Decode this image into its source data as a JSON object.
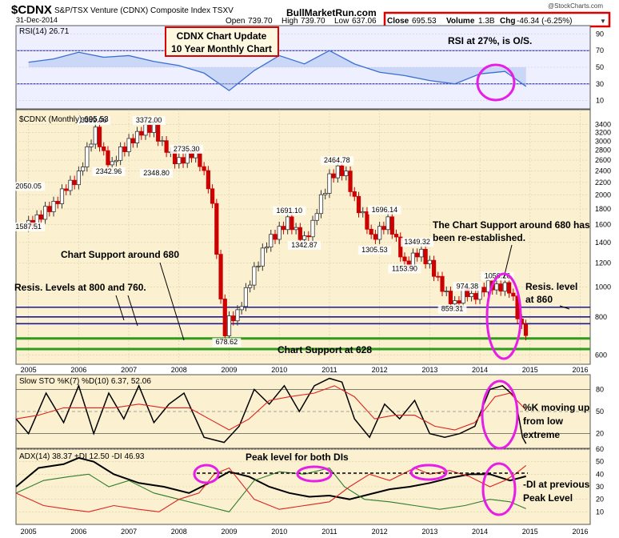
{
  "header": {
    "symbol": "$CDNX",
    "name": "S&P/TSX Venture (CDNX) Composite Index  TSXV",
    "date": "31-Dec-2014",
    "watermark": "@StockCharts.com",
    "site": "BullMarketRun.com",
    "open_label": "Open",
    "open": "739.70",
    "high_label": "High",
    "high": "739.70",
    "low_label": "Low",
    "low": "637.06",
    "close_label": "Close",
    "close": "695.53",
    "volume_label": "Volume",
    "volume": "1.3B",
    "chg_label": "Chg",
    "chg": "-46.34 (-6.25%)",
    "title_box_line1": "CDNX Chart Update",
    "title_box_line2": "10 Year Monthly Chart"
  },
  "colors": {
    "background": "#ffffff",
    "panel_bg": "#fbf0cf",
    "rsi_bg": "#eef0ff",
    "candle_up": "#333333",
    "candle_down": "#cc0000",
    "rsi_line": "#3a6fd0",
    "support_line": "#2e9a1e",
    "resistance_line": "#1a1a9a",
    "highlight_circle": "#e61ee6",
    "adx_line": "#000000",
    "plus_di_line": "#2e7d2e",
    "minus_di_line": "#dd2222",
    "annotation_box": "#dd0000"
  },
  "chart_data": [
    {
      "type": "line",
      "title": "RSI(14) 26.71",
      "value": 26.71,
      "ylim": [
        0,
        100
      ],
      "yticks": [
        "90",
        "70",
        "50",
        "30",
        "10"
      ],
      "reference_lines": [
        70,
        30
      ],
      "x": [
        2005,
        2005.5,
        2006,
        2006.5,
        2007,
        2007.5,
        2008,
        2008.5,
        2009,
        2009.5,
        2010,
        2010.5,
        2011,
        2011.5,
        2012,
        2012.5,
        2013,
        2013.5,
        2014,
        2014.5,
        2014.92
      ],
      "values": [
        56,
        60,
        68,
        62,
        64,
        57,
        52,
        43,
        22,
        46,
        64,
        54,
        70,
        54,
        44,
        40,
        34,
        30,
        42,
        45,
        27
      ],
      "annotation": "RSI at 27%, is O/S."
    },
    {
      "type": "candlestick",
      "title": "$CDNX (Monthly) 695.53",
      "scale": "log",
      "ylim": [
        560,
        3800
      ],
      "yticks": [
        "3400",
        "3200",
        "3000",
        "2800",
        "2600",
        "2400",
        "2200",
        "2000",
        "1800",
        "1600",
        "1400",
        "1200",
        "1000",
        "800",
        "600"
      ],
      "xticks": [
        "2005",
        "2006",
        "2007",
        "2008",
        "2009",
        "2010",
        "2011",
        "2012",
        "2013",
        "2014",
        "2015",
        "2016"
      ],
      "closes": [
        {
          "x": 2005.0,
          "v": 1620
        },
        {
          "x": 2005.25,
          "v": 1700
        },
        {
          "x": 2005.5,
          "v": 1880
        },
        {
          "x": 2005.75,
          "v": 2100
        },
        {
          "x": 2006.0,
          "v": 2350
        },
        {
          "x": 2006.17,
          "v": 2800
        },
        {
          "x": 2006.33,
          "v": 3200
        },
        {
          "x": 2006.5,
          "v": 2750
        },
        {
          "x": 2006.67,
          "v": 2480
        },
        {
          "x": 2006.83,
          "v": 2800
        },
        {
          "x": 2007.0,
          "v": 3000
        },
        {
          "x": 2007.25,
          "v": 3200
        },
        {
          "x": 2007.5,
          "v": 3350
        },
        {
          "x": 2007.67,
          "v": 2900
        },
        {
          "x": 2007.83,
          "v": 2700
        },
        {
          "x": 2008.0,
          "v": 2600
        },
        {
          "x": 2008.25,
          "v": 2700
        },
        {
          "x": 2008.42,
          "v": 2550
        },
        {
          "x": 2008.58,
          "v": 2200
        },
        {
          "x": 2008.67,
          "v": 1800
        },
        {
          "x": 2008.75,
          "v": 1300
        },
        {
          "x": 2008.83,
          "v": 900
        },
        {
          "x": 2008.92,
          "v": 720
        },
        {
          "x": 2009.0,
          "v": 790
        },
        {
          "x": 2009.17,
          "v": 820
        },
        {
          "x": 2009.33,
          "v": 950
        },
        {
          "x": 2009.5,
          "v": 1150
        },
        {
          "x": 2009.67,
          "v": 1300
        },
        {
          "x": 2009.83,
          "v": 1450
        },
        {
          "x": 2010.0,
          "v": 1550
        },
        {
          "x": 2010.17,
          "v": 1650
        },
        {
          "x": 2010.33,
          "v": 1500
        },
        {
          "x": 2010.5,
          "v": 1450
        },
        {
          "x": 2010.67,
          "v": 1600
        },
        {
          "x": 2010.83,
          "v": 1950
        },
        {
          "x": 2011.0,
          "v": 2300
        },
        {
          "x": 2011.17,
          "v": 2420
        },
        {
          "x": 2011.33,
          "v": 2300
        },
        {
          "x": 2011.5,
          "v": 1950
        },
        {
          "x": 2011.67,
          "v": 1700
        },
        {
          "x": 2011.83,
          "v": 1450
        },
        {
          "x": 2012.0,
          "v": 1550
        },
        {
          "x": 2012.17,
          "v": 1650
        },
        {
          "x": 2012.33,
          "v": 1400
        },
        {
          "x": 2012.5,
          "v": 1200
        },
        {
          "x": 2012.67,
          "v": 1250
        },
        {
          "x": 2012.83,
          "v": 1300
        },
        {
          "x": 2013.0,
          "v": 1200
        },
        {
          "x": 2013.17,
          "v": 1050
        },
        {
          "x": 2013.33,
          "v": 930
        },
        {
          "x": 2013.5,
          "v": 890
        },
        {
          "x": 2013.67,
          "v": 960
        },
        {
          "x": 2013.83,
          "v": 930
        },
        {
          "x": 2014.0,
          "v": 980
        },
        {
          "x": 2014.17,
          "v": 1020
        },
        {
          "x": 2014.33,
          "v": 980
        },
        {
          "x": 2014.5,
          "v": 1020
        },
        {
          "x": 2014.58,
          "v": 1000
        },
        {
          "x": 2014.67,
          "v": 900
        },
        {
          "x": 2014.75,
          "v": 800
        },
        {
          "x": 2014.83,
          "v": 740
        },
        {
          "x": 2014.92,
          "v": 695
        }
      ],
      "price_labels": [
        {
          "text": "2050.05",
          "x": 2005.0,
          "v": 2100
        },
        {
          "text": "1587.51",
          "x": 2005.0,
          "v": 1550
        },
        {
          "text": "3369.06",
          "x": 2006.3,
          "v": 3450
        },
        {
          "text": "2342.96",
          "x": 2006.6,
          "v": 2350
        },
        {
          "text": "3372.00",
          "x": 2007.4,
          "v": 3450
        },
        {
          "text": "2348.80",
          "x": 2007.55,
          "v": 2320
        },
        {
          "text": "2735.30",
          "x": 2008.15,
          "v": 2780
        },
        {
          "text": "678.62",
          "x": 2008.95,
          "v": 650
        },
        {
          "text": "1691.10",
          "x": 2010.2,
          "v": 1750
        },
        {
          "text": "1342.87",
          "x": 2010.5,
          "v": 1350
        },
        {
          "text": "2464.78",
          "x": 2011.15,
          "v": 2550
        },
        {
          "text": "1305.53",
          "x": 2011.9,
          "v": 1300
        },
        {
          "text": "1696.14",
          "x": 2012.1,
          "v": 1760
        },
        {
          "text": "1349.32",
          "x": 2012.75,
          "v": 1380
        },
        {
          "text": "1153.90",
          "x": 2012.5,
          "v": 1130
        },
        {
          "text": "974.38",
          "x": 2013.75,
          "v": 990
        },
        {
          "text": "1050.26",
          "x": 2014.35,
          "v": 1070
        },
        {
          "text": "859.31",
          "x": 2013.45,
          "v": 835
        }
      ],
      "horizontal_levels": [
        {
          "value": 860,
          "kind": "resistance"
        },
        {
          "value": 800,
          "kind": "resistance"
        },
        {
          "value": 760,
          "kind": "resistance"
        },
        {
          "value": 680,
          "kind": "support"
        },
        {
          "value": 628,
          "kind": "support"
        }
      ],
      "annotations": [
        "Chart Support around 680",
        "Resis. Levels at 800 and 760.",
        "Chart Support at 628",
        "The Chart Support around 680 has",
        "been re-established.",
        "Resis. level",
        "at 860"
      ]
    },
    {
      "type": "line",
      "title": "Slow STO %K(7) %D(10) 6.37, 52.06",
      "k_value": 6.37,
      "d_value": 52.06,
      "ylim": [
        0,
        100
      ],
      "yticks": [
        "80",
        "50",
        "20"
      ],
      "series": [
        {
          "name": "%K(7)",
          "color": "#000000",
          "x": [
            2004.75,
            2005.0,
            2005.35,
            2005.7,
            2006.0,
            2006.3,
            2006.6,
            2006.9,
            2007.2,
            2007.5,
            2007.8,
            2008.1,
            2008.5,
            2008.9,
            2009.2,
            2009.5,
            2009.8,
            2010.1,
            2010.4,
            2010.7,
            2011.0,
            2011.25,
            2011.5,
            2011.8,
            2012.1,
            2012.4,
            2012.7,
            2013.0,
            2013.3,
            2013.6,
            2013.9,
            2014.2,
            2014.45,
            2014.7,
            2014.85,
            2014.92
          ],
          "values": [
            40,
            20,
            75,
            35,
            85,
            20,
            75,
            40,
            85,
            35,
            60,
            75,
            15,
            8,
            30,
            80,
            60,
            85,
            50,
            85,
            95,
            90,
            40,
            15,
            60,
            40,
            65,
            20,
            15,
            20,
            30,
            80,
            85,
            70,
            15,
            6.37
          ]
        },
        {
          "name": "%D(10)",
          "color": "#dd2222",
          "x": [
            2004.75,
            2005.2,
            2005.7,
            2006.2,
            2006.7,
            2007.2,
            2007.7,
            2008.2,
            2008.6,
            2009.0,
            2009.4,
            2009.8,
            2010.2,
            2010.7,
            2011.1,
            2011.5,
            2011.9,
            2012.3,
            2012.7,
            2013.1,
            2013.5,
            2013.9,
            2014.3,
            2014.6,
            2014.92
          ],
          "values": [
            40,
            45,
            55,
            55,
            55,
            60,
            55,
            55,
            40,
            25,
            40,
            65,
            70,
            75,
            85,
            70,
            40,
            45,
            45,
            30,
            25,
            35,
            70,
            75,
            52.06
          ]
        }
      ],
      "annotation": [
        "%K moving up",
        "from low",
        "extreme"
      ]
    },
    {
      "type": "line",
      "title": "ADX(14) 38.37 +DI 12.50 -DI 46.93",
      "ylim": [
        0,
        60
      ],
      "yticks": [
        "60",
        "50",
        "40",
        "30",
        "20",
        "10"
      ],
      "series": [
        {
          "name": "ADX(14)",
          "color": "#000000",
          "x": [
            2004.75,
            2005.2,
            2005.7,
            2006.0,
            2006.3,
            2006.7,
            2007.2,
            2007.7,
            2008.2,
            2008.6,
            2009.0,
            2009.4,
            2009.8,
            2010.2,
            2010.6,
            2011.0,
            2011.4,
            2011.8,
            2012.2,
            2012.6,
            2013.0,
            2013.4,
            2013.8,
            2014.2,
            2014.6,
            2014.92
          ],
          "values": [
            30,
            45,
            48,
            53,
            50,
            40,
            33,
            30,
            25,
            33,
            42,
            38,
            30,
            25,
            22,
            23,
            20,
            24,
            28,
            30,
            33,
            37,
            40,
            40,
            35,
            38.37
          ]
        },
        {
          "name": "+DI",
          "color": "#2e7d2e",
          "x": [
            2004.75,
            2005.3,
            2005.8,
            2006.2,
            2006.6,
            2007.0,
            2007.5,
            2008.0,
            2008.5,
            2009.0,
            2009.5,
            2010.0,
            2010.5,
            2011.0,
            2011.3,
            2011.7,
            2012.2,
            2012.7,
            2013.2,
            2013.7,
            2014.2,
            2014.6,
            2014.92
          ],
          "values": [
            25,
            35,
            38,
            40,
            30,
            35,
            25,
            20,
            15,
            10,
            35,
            42,
            40,
            45,
            30,
            20,
            18,
            15,
            12,
            15,
            20,
            18,
            12.5
          ]
        },
        {
          "name": "-DI",
          "color": "#dd2222",
          "x": [
            2004.75,
            2005.3,
            2005.8,
            2006.2,
            2006.7,
            2007.2,
            2007.6,
            2008.0,
            2008.4,
            2008.7,
            2009.0,
            2009.5,
            2010.0,
            2010.5,
            2011.0,
            2011.4,
            2011.8,
            2012.2,
            2012.7,
            2013.0,
            2013.4,
            2013.8,
            2014.2,
            2014.5,
            2014.7,
            2014.92
          ],
          "values": [
            25,
            15,
            12,
            10,
            15,
            12,
            10,
            20,
            25,
            40,
            45,
            20,
            12,
            15,
            18,
            30,
            40,
            35,
            45,
            40,
            43,
            38,
            30,
            35,
            40,
            46.93
          ]
        }
      ],
      "peak_level": 46.93,
      "annotations": [
        "Peak level for both DIs",
        "-DI at previous",
        "Peak Level"
      ]
    }
  ]
}
